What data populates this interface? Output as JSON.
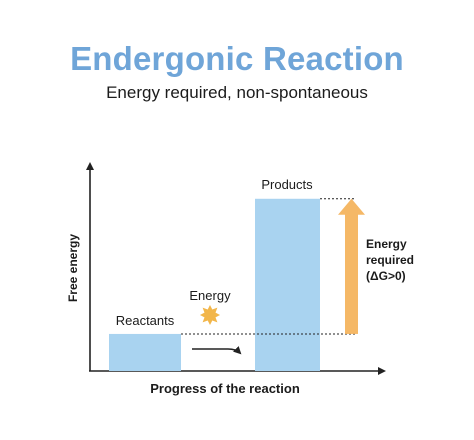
{
  "title": "Endergonic Reaction",
  "subtitle": "Energy required, non-spontaneous",
  "axes": {
    "y_label": "Free energy",
    "x_label": "Progress of the reaction"
  },
  "reactants": {
    "label": "Reactants",
    "level": 0.17
  },
  "products": {
    "label": "Products",
    "level": 0.79
  },
  "energy_input": {
    "label": "Energy"
  },
  "energy_required": {
    "line1": "Energy",
    "line2": "required",
    "line3": "(ΔG>0)"
  },
  "colors": {
    "title": "#6fa5d8",
    "bar": "#a9d3f0",
    "arrow": "#f5b866",
    "star": "#f2b64a",
    "axis": "#222222",
    "text": "#1b1b1b"
  }
}
